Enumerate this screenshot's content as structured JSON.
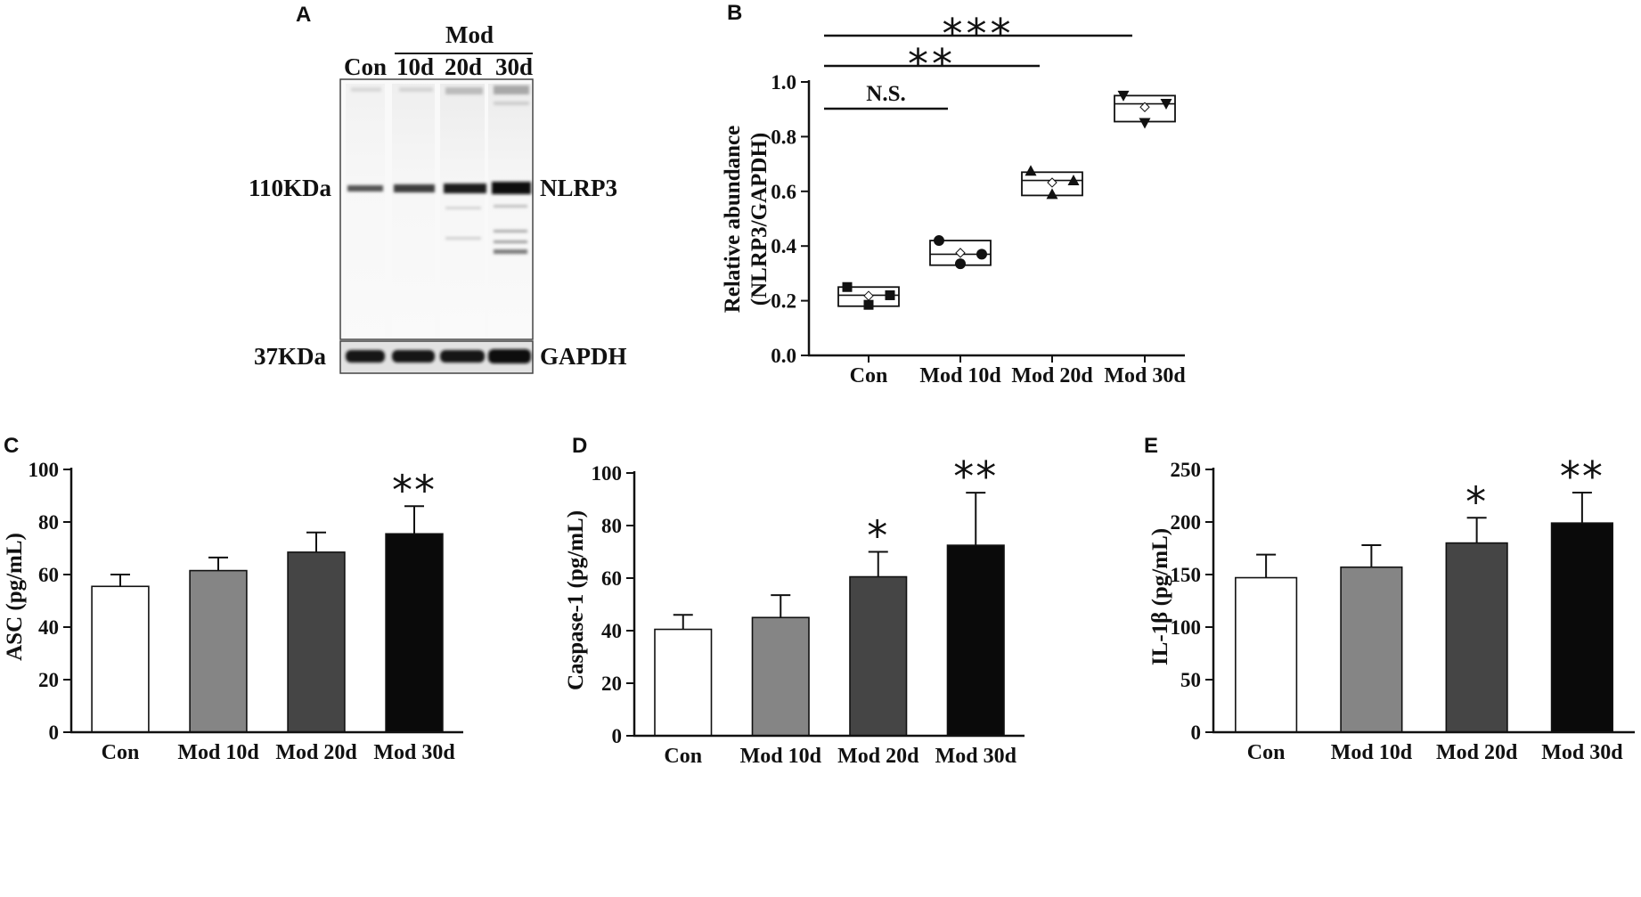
{
  "panel_a": {
    "letter": "A",
    "group_label": "Mod",
    "lanes": [
      "Con",
      "10d",
      "20d",
      "30d"
    ],
    "mw_top": "110KDa",
    "mw_bottom": "37KDa",
    "protein_top": "NLRP3",
    "protein_bottom": "GAPDH"
  },
  "chart_data": [
    {
      "panel": "B",
      "type": "box",
      "ylabel_line1": "Relative abundance",
      "ylabel_line2": "(NLRP3/GAPDH)",
      "categories": [
        "Con",
        "Mod 10d",
        "Mod 20d",
        "Mod 30d"
      ],
      "ylim": [
        0,
        1.0
      ],
      "yticks": [
        "0.0",
        "0.2",
        "0.4",
        "0.6",
        "0.8",
        "1.0"
      ],
      "box_low": [
        0.18,
        0.33,
        0.585,
        0.855
      ],
      "box_high": [
        0.25,
        0.42,
        0.67,
        0.95
      ],
      "median": [
        0.22,
        0.37,
        0.64,
        0.92
      ],
      "mean": [
        0.218,
        0.375,
        0.632,
        0.908
      ],
      "points": [
        [
          0.25,
          0.22,
          0.185
        ],
        [
          0.42,
          0.37,
          0.335
        ],
        [
          0.675,
          0.64,
          0.59
        ],
        [
          0.95,
          0.92,
          0.85
        ]
      ],
      "markers": [
        "square",
        "circle",
        "triangle-up",
        "triangle-down"
      ],
      "comparisons": [
        {
          "from": 0,
          "to": 1,
          "label": "N.S."
        },
        {
          "from": 0,
          "to": 2,
          "label": "**"
        },
        {
          "from": 0,
          "to": 3,
          "label": "***"
        }
      ]
    },
    {
      "panel": "C",
      "type": "bar",
      "ylabel": "ASC (pg/mL)",
      "categories": [
        "Con",
        "Mod 10d",
        "Mod 20d",
        "Mod 30d"
      ],
      "values": [
        55.5,
        61.5,
        68.5,
        75.5
      ],
      "errors": [
        4.5,
        5,
        7.5,
        10.5
      ],
      "significance": [
        "",
        "",
        "",
        "**"
      ],
      "colors": [
        "#ffffff",
        "#858585",
        "#454545",
        "#0a0a0a"
      ],
      "ylim": [
        0,
        100
      ],
      "yticks": [
        "0",
        "20",
        "40",
        "60",
        "80",
        "100"
      ]
    },
    {
      "panel": "D",
      "type": "bar",
      "ylabel": "Caspase-1 (pg/mL)",
      "categories": [
        "Con",
        "Mod 10d",
        "Mod 20d",
        "Mod 30d"
      ],
      "values": [
        40.5,
        45,
        60.5,
        72.5
      ],
      "errors": [
        5.5,
        8.5,
        9.5,
        20
      ],
      "significance": [
        "",
        "",
        "*",
        "**"
      ],
      "colors": [
        "#ffffff",
        "#858585",
        "#454545",
        "#0a0a0a"
      ],
      "ylim": [
        0,
        100
      ],
      "yticks": [
        "0",
        "20",
        "40",
        "60",
        "80",
        "100"
      ]
    },
    {
      "panel": "E",
      "type": "bar",
      "ylabel": "IL-1β (pg/mL)",
      "categories": [
        "Con",
        "Mod 10d",
        "Mod 20d",
        "Mod 30d"
      ],
      "values": [
        147,
        157,
        180,
        199
      ],
      "errors": [
        22,
        21,
        24,
        29
      ],
      "significance": [
        "",
        "",
        "*",
        "**"
      ],
      "colors": [
        "#ffffff",
        "#858585",
        "#454545",
        "#0a0a0a"
      ],
      "ylim": [
        0,
        250
      ],
      "yticks": [
        "0",
        "50",
        "100",
        "150",
        "200",
        "250"
      ]
    }
  ]
}
